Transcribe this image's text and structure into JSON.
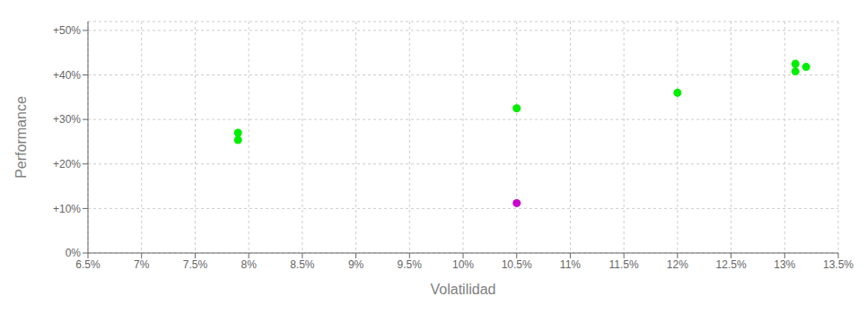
{
  "chart_data": {
    "type": "scatter",
    "xlabel": "Volatilidad",
    "ylabel": "Performance",
    "xlim": [
      0.065,
      0.135
    ],
    "ylim": [
      0.0,
      0.52
    ],
    "xticks": [
      {
        "value": 0.065,
        "label": "6.5%"
      },
      {
        "value": 0.07,
        "label": "7%"
      },
      {
        "value": 0.075,
        "label": "7.5%"
      },
      {
        "value": 0.08,
        "label": "8%"
      },
      {
        "value": 0.085,
        "label": "8.5%"
      },
      {
        "value": 0.09,
        "label": "9%"
      },
      {
        "value": 0.095,
        "label": "9.5%"
      },
      {
        "value": 0.1,
        "label": "10%"
      },
      {
        "value": 0.105,
        "label": "10.5%"
      },
      {
        "value": 0.11,
        "label": "11%"
      },
      {
        "value": 0.115,
        "label": "11.5%"
      },
      {
        "value": 0.12,
        "label": "12%"
      },
      {
        "value": 0.125,
        "label": "12.5%"
      },
      {
        "value": 0.13,
        "label": "13%"
      },
      {
        "value": 0.135,
        "label": "13.5%"
      }
    ],
    "yticks": [
      {
        "value": 0.0,
        "label": "0%"
      },
      {
        "value": 0.1,
        "label": "+10%"
      },
      {
        "value": 0.2,
        "label": "+20%"
      },
      {
        "value": 0.3,
        "label": "+30%"
      },
      {
        "value": 0.4,
        "label": "+40%"
      },
      {
        "value": 0.5,
        "label": "+50%"
      }
    ],
    "grid": true,
    "series": [
      {
        "color": "#00ee00",
        "x": [
          0.079,
          0.079,
          0.105,
          0.12,
          0.131,
          0.131,
          0.132
        ],
        "values": [
          0.27,
          0.254,
          0.325,
          0.36,
          0.425,
          0.408,
          0.418
        ]
      },
      {
        "color": "#cc00cc",
        "x": [
          0.105
        ],
        "values": [
          0.112
        ]
      }
    ]
  }
}
